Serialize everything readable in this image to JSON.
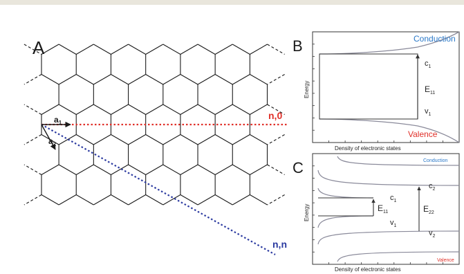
{
  "colors": {
    "top_bar": "#e9e6dc",
    "lattice": "#1a1a1a",
    "zigzag_line": "#e0312a",
    "armchair_line": "#2b3aa0",
    "conduction_text": "#2a78c8",
    "valence_text": "#e0312a",
    "axis": "#333333",
    "dos_curve": "#8a8a9a"
  },
  "panel_a": {
    "label": "A",
    "vector_a1": "a",
    "vector_a1_sub": "1",
    "vector_a2": "a",
    "vector_a2_sub": "2",
    "zigzag_label": "n,0",
    "armchair_label": "n,n"
  },
  "panel_b": {
    "label": "B",
    "ylabel": "Energy",
    "xlabel": "Density of electronic states",
    "conduction": "Conduction",
    "valence": "Valence",
    "c1": "c",
    "c1_sub": "1",
    "v1": "v",
    "v1_sub": "1",
    "e11": "E",
    "e11_sub": "11"
  },
  "panel_c": {
    "label": "C",
    "ylabel": "Energy",
    "xlabel": "Density of electronic states",
    "conduction": "Conduction",
    "valence": "Valence",
    "c1": "c",
    "c1_sub": "1",
    "v1": "v",
    "v1_sub": "1",
    "c2": "c",
    "c2_sub": "2",
    "v2": "v",
    "v2_sub": "2",
    "e11": "E",
    "e11_sub": "11",
    "e22": "E",
    "e22_sub": "22"
  }
}
